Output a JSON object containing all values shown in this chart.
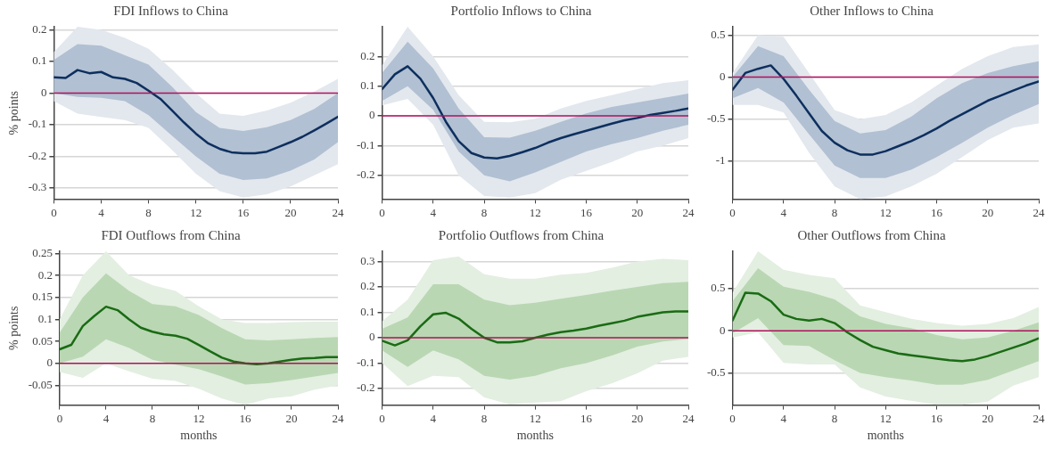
{
  "chart_data": [
    {
      "type": "line",
      "title": "FDI Inflows to China",
      "ylabel": "% points",
      "xlim": [
        0,
        24
      ],
      "xticks": [
        0,
        4,
        8,
        12,
        16,
        20,
        24
      ],
      "ylim": [
        -0.335,
        0.21
      ],
      "yticks": [
        -0.3,
        -0.2,
        -0.1,
        0,
        0.1,
        0.2
      ],
      "grid": "y",
      "ref_lines": [
        {
          "axis": "y",
          "value": 0,
          "color": "#b0105e"
        }
      ],
      "series": [
        {
          "color": "#e3e8ee",
          "x": [
            0,
            2,
            4,
            6,
            8,
            10,
            12,
            14,
            16,
            18,
            20,
            22,
            24
          ],
          "values": [
            null,
            null,
            null,
            null,
            null,
            null,
            null,
            null,
            null,
            null,
            null,
            null,
            null
          ],
          "upper": [
            0.13,
            0.21,
            0.2,
            0.175,
            0.14,
            0.075,
            0.0,
            -0.065,
            -0.072,
            -0.055,
            -0.03,
            0.005,
            0.045
          ],
          "lower": [
            -0.025,
            -0.065,
            -0.075,
            -0.085,
            -0.11,
            -0.18,
            -0.255,
            -0.31,
            -0.33,
            -0.32,
            -0.295,
            -0.26,
            -0.225
          ]
        },
        {
          "color": "#b1c0d2",
          "x": [
            0,
            2,
            4,
            6,
            8,
            10,
            12,
            14,
            16,
            18,
            20,
            22,
            24
          ],
          "values": [
            null,
            null,
            null,
            null,
            null,
            null,
            null,
            null,
            null,
            null,
            null,
            null,
            null
          ],
          "upper": [
            0.105,
            0.155,
            0.15,
            0.12,
            0.09,
            0.02,
            -0.06,
            -0.11,
            -0.12,
            -0.108,
            -0.085,
            -0.05,
            0.0
          ],
          "lower": [
            0.0,
            -0.012,
            -0.015,
            -0.025,
            -0.07,
            -0.135,
            -0.2,
            -0.255,
            -0.275,
            -0.27,
            -0.245,
            -0.21,
            -0.155
          ]
        },
        {
          "color": "#0d2f5e",
          "x": [
            0,
            1,
            2,
            3,
            4,
            5,
            6,
            7,
            8,
            9,
            10,
            11,
            12,
            13,
            14,
            15,
            16,
            17,
            18,
            19,
            20,
            21,
            22,
            23,
            24
          ],
          "values": [
            0.05,
            0.048,
            0.073,
            0.063,
            0.067,
            0.05,
            0.045,
            0.032,
            0.008,
            -0.018,
            -0.055,
            -0.093,
            -0.128,
            -0.158,
            -0.176,
            -0.187,
            -0.19,
            -0.19,
            -0.185,
            -0.17,
            -0.155,
            -0.138,
            -0.118,
            -0.097,
            -0.075
          ]
        }
      ]
    },
    {
      "type": "line",
      "title": "Portfolio Inflows to China",
      "xlim": [
        0,
        24
      ],
      "xticks": [
        0,
        4,
        8,
        12,
        16,
        20,
        24
      ],
      "ylim": [
        -0.28,
        0.3
      ],
      "yticks": [
        -0.2,
        -0.1,
        0,
        0.1,
        0.2
      ],
      "grid": "y",
      "ref_lines": [
        {
          "axis": "y",
          "value": 0,
          "color": "#b0105e"
        }
      ],
      "series": [
        {
          "color": "#e3e8ee",
          "x": [
            0,
            2,
            4,
            6,
            8,
            10,
            12,
            14,
            16,
            18,
            20,
            22,
            24
          ],
          "values": [
            null,
            null,
            null,
            null,
            null,
            null,
            null,
            null,
            null,
            null,
            null,
            null,
            null
          ],
          "upper": [
            0.17,
            0.3,
            0.2,
            0.07,
            -0.02,
            -0.022,
            -0.01,
            0.025,
            0.05,
            0.07,
            0.09,
            0.11,
            0.12
          ],
          "lower": [
            0.035,
            0.057,
            -0.03,
            -0.2,
            -0.27,
            -0.275,
            -0.26,
            -0.215,
            -0.185,
            -0.155,
            -0.12,
            -0.1,
            -0.075
          ]
        },
        {
          "color": "#b1c0d2",
          "x": [
            0,
            2,
            4,
            6,
            8,
            10,
            12,
            14,
            16,
            18,
            20,
            22,
            24
          ],
          "values": [
            null,
            null,
            null,
            null,
            null,
            null,
            null,
            null,
            null,
            null,
            null,
            null,
            null
          ],
          "upper": [
            0.145,
            0.25,
            0.16,
            0.025,
            -0.072,
            -0.073,
            -0.05,
            -0.02,
            0.008,
            0.03,
            0.045,
            0.06,
            0.075
          ],
          "lower": [
            0.05,
            0.1,
            0.02,
            -0.12,
            -0.2,
            -0.22,
            -0.19,
            -0.155,
            -0.12,
            -0.095,
            -0.075,
            -0.05,
            -0.03
          ]
        },
        {
          "color": "#0d2f5e",
          "x": [
            0,
            1,
            2,
            3,
            4,
            5,
            6,
            7,
            8,
            9,
            10,
            11,
            12,
            13,
            14,
            15,
            16,
            17,
            18,
            19,
            20,
            21,
            22,
            23,
            24
          ],
          "values": [
            0.09,
            0.14,
            0.167,
            0.125,
            0.06,
            -0.02,
            -0.085,
            -0.125,
            -0.14,
            -0.143,
            -0.135,
            -0.122,
            -0.108,
            -0.09,
            -0.075,
            -0.062,
            -0.05,
            -0.038,
            -0.026,
            -0.015,
            -0.007,
            0.003,
            0.01,
            0.017,
            0.025
          ]
        }
      ]
    },
    {
      "type": "line",
      "title": "Other Inflows to China",
      "xlim": [
        0,
        24
      ],
      "xticks": [
        0,
        4,
        8,
        12,
        16,
        20,
        24
      ],
      "ylim": [
        -1.45,
        0.6
      ],
      "yticks": [
        -1,
        -0.5,
        0,
        0.5
      ],
      "grid": "y",
      "ref_lines": [
        {
          "axis": "y",
          "value": 0,
          "color": "#b0105e"
        }
      ],
      "series": [
        {
          "color": "#e3e8ee",
          "x": [
            0,
            2,
            4,
            6,
            8,
            10,
            12,
            14,
            16,
            18,
            20,
            22,
            24
          ],
          "values": [
            null,
            null,
            null,
            null,
            null,
            null,
            null,
            null,
            null,
            null,
            null,
            null,
            null
          ],
          "upper": [
            0.05,
            0.5,
            0.48,
            0.05,
            -0.39,
            -0.5,
            -0.45,
            -0.3,
            -0.1,
            0.1,
            0.25,
            0.36,
            0.39
          ],
          "lower": [
            -0.33,
            -0.33,
            -0.42,
            -0.9,
            -1.3,
            -1.45,
            -1.42,
            -1.3,
            -1.15,
            -0.95,
            -0.75,
            -0.6,
            -0.55
          ]
        },
        {
          "color": "#b1c0d2",
          "x": [
            0,
            2,
            4,
            6,
            8,
            10,
            12,
            14,
            16,
            18,
            20,
            22,
            24
          ],
          "values": [
            null,
            null,
            null,
            null,
            null,
            null,
            null,
            null,
            null,
            null,
            null,
            null,
            null
          ],
          "upper": [
            0.0,
            0.37,
            0.25,
            -0.15,
            -0.52,
            -0.67,
            -0.63,
            -0.47,
            -0.25,
            -0.07,
            0.05,
            0.13,
            0.19
          ],
          "lower": [
            -0.25,
            -0.13,
            -0.3,
            -0.68,
            -1.05,
            -1.2,
            -1.2,
            -1.1,
            -0.95,
            -0.78,
            -0.6,
            -0.45,
            -0.32
          ]
        },
        {
          "color": "#0d2f5e",
          "x": [
            0,
            1,
            2,
            3,
            4,
            5,
            6,
            7,
            8,
            9,
            10,
            11,
            12,
            13,
            14,
            15,
            16,
            17,
            18,
            19,
            20,
            21,
            22,
            23,
            24
          ],
          "values": [
            -0.15,
            0.05,
            0.1,
            0.14,
            -0.02,
            -0.22,
            -0.43,
            -0.64,
            -0.78,
            -0.87,
            -0.92,
            -0.92,
            -0.88,
            -0.82,
            -0.76,
            -0.69,
            -0.61,
            -0.52,
            -0.44,
            -0.36,
            -0.28,
            -0.22,
            -0.16,
            -0.1,
            -0.05
          ]
        }
      ]
    },
    {
      "type": "line",
      "title": "FDI Outflows from China",
      "xlabel": "months",
      "ylabel": "% points",
      "xlim": [
        0,
        24
      ],
      "xticks": [
        0,
        4,
        8,
        12,
        16,
        20,
        24
      ],
      "ylim": [
        -0.095,
        0.255
      ],
      "yticks": [
        -0.05,
        0,
        0.05,
        0.1,
        0.15,
        0.2,
        0.25
      ],
      "grid": "y",
      "ref_lines": [
        {
          "axis": "y",
          "value": 0,
          "color": "#b0105e"
        }
      ],
      "series": [
        {
          "color": "#e3efe1",
          "x": [
            0,
            2,
            4,
            6,
            8,
            10,
            12,
            14,
            16,
            18,
            20,
            22,
            24
          ],
          "values": [
            null,
            null,
            null,
            null,
            null,
            null,
            null,
            null,
            null,
            null,
            null,
            null,
            null
          ],
          "upper": [
            0.1,
            0.2,
            0.255,
            0.2,
            0.178,
            0.165,
            0.13,
            0.1,
            0.092,
            0.092,
            0.094,
            0.095,
            0.095
          ],
          "lower": [
            -0.02,
            -0.033,
            0.0,
            -0.018,
            -0.035,
            -0.04,
            -0.058,
            -0.08,
            -0.095,
            -0.08,
            -0.075,
            -0.06,
            -0.05
          ]
        },
        {
          "color": "#b9d7b3",
          "x": [
            0,
            2,
            4,
            6,
            8,
            10,
            12,
            14,
            16,
            18,
            20,
            22,
            24
          ],
          "values": [
            null,
            null,
            null,
            null,
            null,
            null,
            null,
            null,
            null,
            null,
            null,
            null,
            null
          ],
          "upper": [
            0.07,
            0.15,
            0.205,
            0.165,
            0.135,
            0.13,
            0.11,
            0.08,
            0.055,
            0.052,
            0.055,
            0.058,
            0.06
          ],
          "lower": [
            0.0,
            0.015,
            0.055,
            0.035,
            0.008,
            -0.003,
            -0.013,
            -0.03,
            -0.048,
            -0.045,
            -0.038,
            -0.03,
            -0.022
          ]
        },
        {
          "color": "#1a6b14",
          "x": [
            0,
            1,
            2,
            3,
            4,
            5,
            6,
            7,
            8,
            9,
            10,
            11,
            12,
            13,
            14,
            15,
            16,
            17,
            18,
            19,
            20,
            21,
            22,
            23,
            24
          ],
          "values": [
            0.032,
            0.042,
            0.085,
            0.108,
            0.129,
            0.121,
            0.1,
            0.081,
            0.072,
            0.066,
            0.063,
            0.056,
            0.042,
            0.027,
            0.013,
            0.004,
            0.0,
            -0.002,
            0.0,
            0.004,
            0.008,
            0.011,
            0.012,
            0.014,
            0.014
          ]
        }
      ]
    },
    {
      "type": "line",
      "title": "Portfolio Outflows from China",
      "xlabel": "months",
      "xlim": [
        0,
        24
      ],
      "xticks": [
        0,
        4,
        8,
        12,
        16,
        20,
        24
      ],
      "ylim": [
        -0.265,
        0.34
      ],
      "yticks": [
        -0.2,
        -0.1,
        0,
        0.1,
        0.2,
        0.3
      ],
      "grid": "y",
      "ref_lines": [
        {
          "axis": "y",
          "value": 0,
          "color": "#b0105e"
        }
      ],
      "series": [
        {
          "color": "#e3efe1",
          "x": [
            0,
            2,
            4,
            6,
            8,
            10,
            12,
            14,
            16,
            18,
            20,
            22,
            24
          ],
          "values": [
            null,
            null,
            null,
            null,
            null,
            null,
            null,
            null,
            null,
            null,
            null,
            null,
            null
          ],
          "upper": [
            0.065,
            0.15,
            0.305,
            0.32,
            0.25,
            0.232,
            0.232,
            0.248,
            0.255,
            0.275,
            0.3,
            0.31,
            0.305
          ],
          "lower": [
            -0.1,
            -0.19,
            -0.15,
            -0.155,
            -0.235,
            -0.262,
            -0.255,
            -0.25,
            -0.21,
            -0.18,
            -0.14,
            -0.09,
            -0.075
          ]
        },
        {
          "color": "#b9d7b3",
          "x": [
            0,
            2,
            4,
            6,
            8,
            10,
            12,
            14,
            16,
            18,
            20,
            22,
            24
          ],
          "values": [
            null,
            null,
            null,
            null,
            null,
            null,
            null,
            null,
            null,
            null,
            null,
            null,
            null
          ],
          "upper": [
            0.035,
            0.08,
            0.21,
            0.21,
            0.15,
            0.128,
            0.138,
            0.153,
            0.168,
            0.185,
            0.2,
            0.215,
            0.22
          ],
          "lower": [
            -0.05,
            -0.115,
            -0.05,
            -0.085,
            -0.15,
            -0.165,
            -0.15,
            -0.12,
            -0.1,
            -0.07,
            -0.035,
            -0.015,
            -0.005
          ]
        },
        {
          "color": "#1a6b14",
          "x": [
            0,
            1,
            2,
            3,
            4,
            5,
            6,
            7,
            8,
            9,
            10,
            11,
            12,
            13,
            14,
            15,
            16,
            17,
            18,
            19,
            20,
            21,
            22,
            23,
            24
          ],
          "values": [
            -0.012,
            -0.03,
            -0.01,
            0.045,
            0.092,
            0.098,
            0.075,
            0.035,
            0.0,
            -0.018,
            -0.018,
            -0.014,
            0.0,
            0.012,
            0.022,
            0.028,
            0.036,
            0.047,
            0.057,
            0.067,
            0.082,
            0.091,
            0.1,
            0.103,
            0.103
          ]
        }
      ]
    },
    {
      "type": "line",
      "title": "Other Outflows from China",
      "xlabel": "months",
      "xlim": [
        0,
        24
      ],
      "xticks": [
        0,
        4,
        8,
        12,
        16,
        20,
        24
      ],
      "ylim": [
        -0.88,
        0.94
      ],
      "yticks": [
        -0.5,
        0,
        0.5
      ],
      "grid": "y",
      "ref_lines": [
        {
          "axis": "y",
          "value": 0,
          "color": "#b0105e"
        }
      ],
      "series": [
        {
          "color": "#e3efe1",
          "x": [
            0,
            2,
            4,
            6,
            8,
            10,
            12,
            14,
            16,
            18,
            20,
            22,
            24
          ],
          "values": [
            null,
            null,
            null,
            null,
            null,
            null,
            null,
            null,
            null,
            null,
            null,
            null,
            null
          ],
          "upper": [
            0.45,
            0.94,
            0.72,
            0.66,
            0.62,
            0.3,
            0.22,
            0.14,
            0.09,
            0.06,
            0.08,
            0.15,
            0.28
          ],
          "lower": [
            -0.08,
            -0.02,
            -0.38,
            -0.4,
            -0.4,
            -0.67,
            -0.78,
            -0.83,
            -0.875,
            -0.875,
            -0.84,
            -0.65,
            -0.55
          ]
        },
        {
          "color": "#b9d7b3",
          "x": [
            0,
            2,
            4,
            6,
            8,
            10,
            12,
            14,
            16,
            18,
            20,
            22,
            24
          ],
          "values": [
            null,
            null,
            null,
            null,
            null,
            null,
            null,
            null,
            null,
            null,
            null,
            null,
            null
          ],
          "upper": [
            0.35,
            0.74,
            0.52,
            0.46,
            0.37,
            0.17,
            0.08,
            0.03,
            -0.05,
            -0.1,
            -0.08,
            0.0,
            0.1
          ],
          "lower": [
            -0.03,
            0.15,
            -0.17,
            -0.18,
            -0.35,
            -0.5,
            -0.55,
            -0.59,
            -0.64,
            -0.64,
            -0.58,
            -0.47,
            -0.36
          ]
        },
        {
          "color": "#1a6b14",
          "x": [
            0,
            1,
            2,
            3,
            4,
            5,
            6,
            7,
            8,
            9,
            10,
            11,
            12,
            13,
            14,
            15,
            16,
            17,
            18,
            19,
            20,
            21,
            22,
            23,
            24
          ],
          "values": [
            0.12,
            0.45,
            0.44,
            0.35,
            0.19,
            0.14,
            0.12,
            0.14,
            0.09,
            -0.02,
            -0.11,
            -0.19,
            -0.23,
            -0.27,
            -0.29,
            -0.31,
            -0.33,
            -0.35,
            -0.36,
            -0.34,
            -0.3,
            -0.25,
            -0.2,
            -0.15,
            -0.09
          ]
        }
      ]
    }
  ]
}
